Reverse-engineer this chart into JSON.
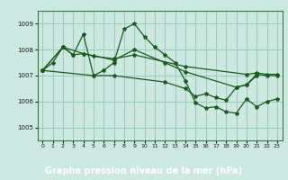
{
  "title": "Graphe pression niveau de la mer (hPa)",
  "bg_color": "#cce8e0",
  "plot_bg": "#cce8e0",
  "label_bg": "#2d6b2d",
  "label_fg": "#ffffff",
  "grid_color": "#99ccbb",
  "line_color": "#1a5c1a",
  "ylim": [
    1004.5,
    1009.5
  ],
  "xlim": [
    -0.5,
    23.5
  ],
  "yticks": [
    1005,
    1006,
    1007,
    1008,
    1009
  ],
  "xticks": [
    0,
    1,
    2,
    3,
    4,
    5,
    6,
    7,
    8,
    9,
    10,
    11,
    12,
    13,
    14,
    15,
    16,
    17,
    18,
    19,
    20,
    21,
    22,
    23
  ],
  "series_jagged": [
    1007.2,
    1007.5,
    1008.1,
    1007.8,
    1008.6,
    1007.0,
    1007.2,
    1007.5,
    1008.8,
    1009.0,
    1008.5,
    1008.1,
    1007.8,
    1007.5,
    1006.8,
    1005.95,
    1005.75,
    1005.8,
    1005.6,
    1005.55,
    1006.1,
    1005.8,
    1006.0,
    1006.1
  ],
  "trend_flat_x": [
    0,
    2,
    3,
    4,
    5,
    7,
    9,
    14,
    20,
    21,
    22,
    23
  ],
  "trend_flat_y": [
    1007.2,
    1008.1,
    1007.8,
    1007.85,
    1007.75,
    1007.65,
    1007.8,
    1007.35,
    1007.05,
    1007.1,
    1007.05,
    1007.05
  ],
  "trend_mid_x": [
    0,
    2,
    4,
    7,
    9,
    12,
    14,
    19,
    20,
    21,
    22,
    23
  ],
  "trend_mid_y": [
    1007.2,
    1008.1,
    1007.85,
    1007.6,
    1008.0,
    1007.5,
    1007.15,
    1006.55,
    1006.65,
    1007.05,
    1007.0,
    1007.0
  ],
  "trend_steep_x": [
    0,
    5,
    7,
    12,
    14,
    15,
    16,
    17,
    18,
    19,
    20,
    21
  ],
  "trend_steep_y": [
    1007.2,
    1007.0,
    1007.0,
    1006.75,
    1006.5,
    1006.2,
    1006.3,
    1006.15,
    1006.05,
    1006.55,
    1006.65,
    1007.0
  ]
}
